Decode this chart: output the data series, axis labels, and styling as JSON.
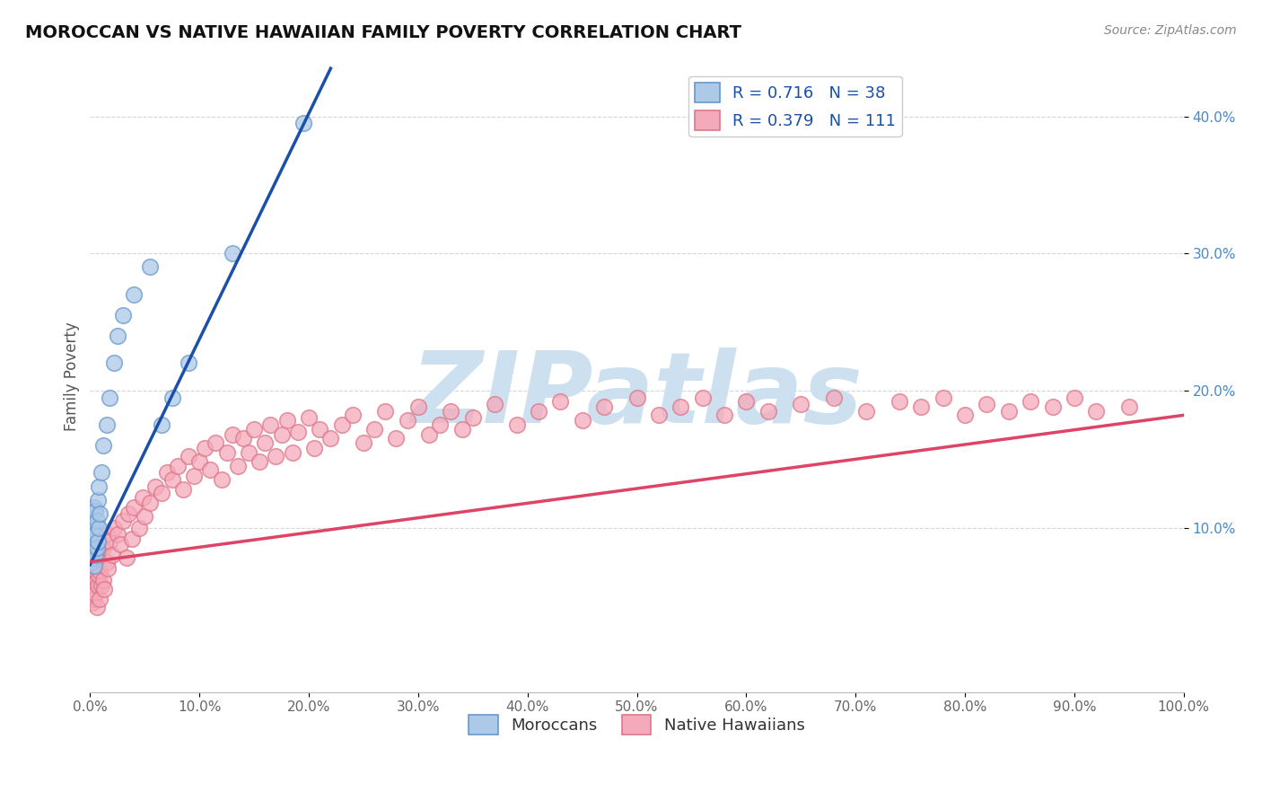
{
  "title": "MOROCCAN VS NATIVE HAWAIIAN FAMILY POVERTY CORRELATION CHART",
  "source_text": "Source: ZipAtlas.com",
  "ylabel": "Family Poverty",
  "xlim": [
    0.0,
    1.0
  ],
  "ylim": [
    -0.02,
    0.44
  ],
  "xtick_vals": [
    0.0,
    0.1,
    0.2,
    0.3,
    0.4,
    0.5,
    0.6,
    0.7,
    0.8,
    0.9,
    1.0
  ],
  "ytick_vals": [
    0.1,
    0.2,
    0.3,
    0.4
  ],
  "background_color": "#ffffff",
  "watermark_text": "ZIPatlas",
  "watermark_color": "#cce0f0",
  "legend_r1": "R = 0.716",
  "legend_n1": "N = 38",
  "legend_r2": "R = 0.379",
  "legend_n2": "N = 111",
  "moroccan_color": "#adc9e8",
  "moroccan_edge": "#6699cc",
  "hawaiian_color": "#f5aabb",
  "hawaiian_edge": "#dd7788",
  "line_blue": "#1a4faa",
  "line_pink": "#dd4466",
  "moroccan_x": [
    0.0005,
    0.001,
    0.001,
    0.001,
    0.002,
    0.002,
    0.002,
    0.003,
    0.003,
    0.003,
    0.004,
    0.004,
    0.004,
    0.004,
    0.005,
    0.005,
    0.005,
    0.006,
    0.006,
    0.007,
    0.007,
    0.008,
    0.008,
    0.009,
    0.01,
    0.012,
    0.015,
    0.018,
    0.022,
    0.025,
    0.03,
    0.04,
    0.055,
    0.065,
    0.075,
    0.09,
    0.13,
    0.195
  ],
  "moroccan_y": [
    0.075,
    0.08,
    0.09,
    0.1,
    0.082,
    0.095,
    0.11,
    0.078,
    0.088,
    0.105,
    0.072,
    0.085,
    0.095,
    0.115,
    0.08,
    0.095,
    0.112,
    0.085,
    0.105,
    0.09,
    0.12,
    0.1,
    0.13,
    0.11,
    0.14,
    0.16,
    0.175,
    0.195,
    0.22,
    0.24,
    0.255,
    0.27,
    0.29,
    0.175,
    0.195,
    0.22,
    0.3,
    0.395
  ],
  "hawaiian_x": [
    0.001,
    0.001,
    0.002,
    0.002,
    0.003,
    0.003,
    0.004,
    0.004,
    0.005,
    0.005,
    0.006,
    0.006,
    0.007,
    0.007,
    0.008,
    0.008,
    0.009,
    0.009,
    0.01,
    0.01,
    0.012,
    0.012,
    0.013,
    0.015,
    0.015,
    0.016,
    0.018,
    0.02,
    0.022,
    0.025,
    0.028,
    0.03,
    0.033,
    0.035,
    0.038,
    0.04,
    0.045,
    0.048,
    0.05,
    0.055,
    0.06,
    0.065,
    0.07,
    0.075,
    0.08,
    0.085,
    0.09,
    0.095,
    0.1,
    0.105,
    0.11,
    0.115,
    0.12,
    0.125,
    0.13,
    0.135,
    0.14,
    0.145,
    0.15,
    0.155,
    0.16,
    0.165,
    0.17,
    0.175,
    0.18,
    0.185,
    0.19,
    0.2,
    0.205,
    0.21,
    0.22,
    0.23,
    0.24,
    0.25,
    0.26,
    0.27,
    0.28,
    0.29,
    0.3,
    0.31,
    0.32,
    0.33,
    0.34,
    0.35,
    0.37,
    0.39,
    0.41,
    0.43,
    0.45,
    0.47,
    0.5,
    0.52,
    0.54,
    0.56,
    0.58,
    0.6,
    0.62,
    0.65,
    0.68,
    0.71,
    0.74,
    0.76,
    0.78,
    0.8,
    0.82,
    0.84,
    0.86,
    0.88,
    0.9,
    0.92,
    0.95
  ],
  "hawaiian_y": [
    0.05,
    0.065,
    0.045,
    0.07,
    0.055,
    0.075,
    0.048,
    0.068,
    0.052,
    0.072,
    0.042,
    0.062,
    0.058,
    0.078,
    0.065,
    0.082,
    0.048,
    0.068,
    0.058,
    0.085,
    0.062,
    0.085,
    0.055,
    0.075,
    0.095,
    0.07,
    0.09,
    0.08,
    0.1,
    0.095,
    0.088,
    0.105,
    0.078,
    0.11,
    0.092,
    0.115,
    0.1,
    0.122,
    0.108,
    0.118,
    0.13,
    0.125,
    0.14,
    0.135,
    0.145,
    0.128,
    0.152,
    0.138,
    0.148,
    0.158,
    0.142,
    0.162,
    0.135,
    0.155,
    0.168,
    0.145,
    0.165,
    0.155,
    0.172,
    0.148,
    0.162,
    0.175,
    0.152,
    0.168,
    0.178,
    0.155,
    0.17,
    0.18,
    0.158,
    0.172,
    0.165,
    0.175,
    0.182,
    0.162,
    0.172,
    0.185,
    0.165,
    0.178,
    0.188,
    0.168,
    0.175,
    0.185,
    0.172,
    0.18,
    0.19,
    0.175,
    0.185,
    0.192,
    0.178,
    0.188,
    0.195,
    0.182,
    0.188,
    0.195,
    0.182,
    0.192,
    0.185,
    0.19,
    0.195,
    0.185,
    0.192,
    0.188,
    0.195,
    0.182,
    0.19,
    0.185,
    0.192,
    0.188,
    0.195,
    0.185,
    0.188
  ],
  "moroccan_line_x": [
    0.0,
    0.22
  ],
  "moroccan_line_y": [
    0.073,
    0.435
  ],
  "hawaiian_line_x": [
    0.0,
    1.0
  ],
  "hawaiian_line_y": [
    0.075,
    0.182
  ]
}
